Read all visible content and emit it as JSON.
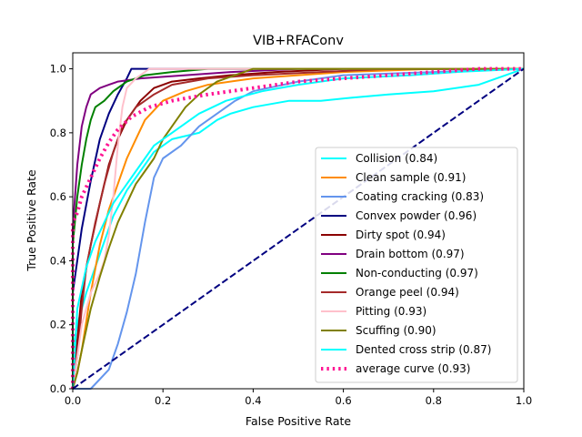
{
  "chart_data": {
    "type": "line",
    "title": "VIB+RFAConv",
    "xlabel": "False Positive Rate",
    "ylabel": "True Positive Rate",
    "xlim": [
      0.0,
      1.0
    ],
    "ylim": [
      0.0,
      1.05
    ],
    "xticks": [
      "0.0",
      "0.2",
      "0.4",
      "0.6",
      "0.8",
      "1.0"
    ],
    "yticks": [
      "0.0",
      "0.2",
      "0.4",
      "0.6",
      "0.8",
      "1.0"
    ],
    "grid": false,
    "legend_position": "lower-right",
    "series": [
      {
        "name": "Collision (0.84)",
        "color": "#00ffff",
        "dash": "solid",
        "points": [
          [
            0,
            0
          ],
          [
            0,
            0.12
          ],
          [
            0.01,
            0.2
          ],
          [
            0.03,
            0.3
          ],
          [
            0.05,
            0.38
          ],
          [
            0.07,
            0.46
          ],
          [
            0.09,
            0.54
          ],
          [
            0.12,
            0.62
          ],
          [
            0.15,
            0.68
          ],
          [
            0.18,
            0.74
          ],
          [
            0.22,
            0.78
          ],
          [
            0.28,
            0.8
          ],
          [
            0.32,
            0.84
          ],
          [
            0.35,
            0.86
          ],
          [
            0.4,
            0.88
          ],
          [
            0.48,
            0.9
          ],
          [
            0.55,
            0.9
          ],
          [
            0.62,
            0.91
          ],
          [
            0.7,
            0.92
          ],
          [
            0.8,
            0.93
          ],
          [
            0.9,
            0.95
          ],
          [
            1.0,
            1.0
          ]
        ]
      },
      {
        "name": "Clean sample (0.91)",
        "color": "#ff8c00",
        "dash": "solid",
        "points": [
          [
            0,
            0
          ],
          [
            0.01,
            0.05
          ],
          [
            0.02,
            0.12
          ],
          [
            0.04,
            0.3
          ],
          [
            0.06,
            0.45
          ],
          [
            0.08,
            0.56
          ],
          [
            0.1,
            0.64
          ],
          [
            0.12,
            0.72
          ],
          [
            0.14,
            0.78
          ],
          [
            0.16,
            0.84
          ],
          [
            0.2,
            0.9
          ],
          [
            0.25,
            0.93
          ],
          [
            0.3,
            0.95
          ],
          [
            0.4,
            0.97
          ],
          [
            0.5,
            0.98
          ],
          [
            0.6,
            0.99
          ],
          [
            0.8,
            1.0
          ],
          [
            1.0,
            1.0
          ]
        ]
      },
      {
        "name": "Coating cracking (0.83)",
        "color": "#6495ed",
        "dash": "solid",
        "points": [
          [
            0,
            0
          ],
          [
            0.04,
            0.0
          ],
          [
            0.06,
            0.03
          ],
          [
            0.08,
            0.06
          ],
          [
            0.1,
            0.14
          ],
          [
            0.12,
            0.24
          ],
          [
            0.14,
            0.36
          ],
          [
            0.16,
            0.52
          ],
          [
            0.18,
            0.66
          ],
          [
            0.2,
            0.72
          ],
          [
            0.24,
            0.76
          ],
          [
            0.28,
            0.82
          ],
          [
            0.32,
            0.86
          ],
          [
            0.36,
            0.9
          ],
          [
            0.4,
            0.93
          ],
          [
            0.5,
            0.96
          ],
          [
            0.6,
            0.98
          ],
          [
            0.8,
            0.99
          ],
          [
            1.0,
            1.0
          ]
        ]
      },
      {
        "name": "Convex powder (0.96)",
        "color": "#000080",
        "dash": "solid",
        "points": [
          [
            0,
            0
          ],
          [
            0,
            0.3
          ],
          [
            0.02,
            0.5
          ],
          [
            0.04,
            0.65
          ],
          [
            0.06,
            0.78
          ],
          [
            0.08,
            0.86
          ],
          [
            0.1,
            0.92
          ],
          [
            0.12,
            0.97
          ],
          [
            0.13,
            1.0
          ],
          [
            0.16,
            1.0
          ],
          [
            1.0,
            1.0
          ]
        ]
      },
      {
        "name": "Dirty spot (0.94)",
        "color": "#8b0000",
        "dash": "solid",
        "points": [
          [
            0,
            0
          ],
          [
            0.01,
            0.15
          ],
          [
            0.02,
            0.3
          ],
          [
            0.04,
            0.45
          ],
          [
            0.06,
            0.58
          ],
          [
            0.08,
            0.7
          ],
          [
            0.1,
            0.78
          ],
          [
            0.12,
            0.84
          ],
          [
            0.15,
            0.9
          ],
          [
            0.18,
            0.94
          ],
          [
            0.22,
            0.96
          ],
          [
            0.28,
            0.97
          ],
          [
            0.35,
            0.98
          ],
          [
            0.45,
            0.99
          ],
          [
            0.6,
            1.0
          ],
          [
            1.0,
            1.0
          ]
        ]
      },
      {
        "name": "Drain bottom (0.97)",
        "color": "#800080",
        "dash": "solid",
        "points": [
          [
            0,
            0
          ],
          [
            0,
            0.5
          ],
          [
            0.01,
            0.7
          ],
          [
            0.02,
            0.82
          ],
          [
            0.03,
            0.88
          ],
          [
            0.04,
            0.92
          ],
          [
            0.06,
            0.94
          ],
          [
            0.08,
            0.95
          ],
          [
            0.1,
            0.96
          ],
          [
            0.15,
            0.97
          ],
          [
            0.25,
            0.98
          ],
          [
            0.35,
            0.99
          ],
          [
            0.5,
            1.0
          ],
          [
            1.0,
            1.0
          ]
        ]
      },
      {
        "name": "Non-conducting (0.97)",
        "color": "#008000",
        "dash": "solid",
        "points": [
          [
            0,
            0
          ],
          [
            0,
            0.45
          ],
          [
            0.01,
            0.6
          ],
          [
            0.02,
            0.7
          ],
          [
            0.03,
            0.78
          ],
          [
            0.04,
            0.84
          ],
          [
            0.05,
            0.88
          ],
          [
            0.07,
            0.9
          ],
          [
            0.09,
            0.93
          ],
          [
            0.12,
            0.96
          ],
          [
            0.16,
            0.98
          ],
          [
            0.22,
            0.99
          ],
          [
            0.3,
            1.0
          ],
          [
            1.0,
            1.0
          ]
        ]
      },
      {
        "name": "Orange peel (0.94)",
        "color": "#a52a2a",
        "dash": "solid",
        "points": [
          [
            0,
            0
          ],
          [
            0.01,
            0.1
          ],
          [
            0.02,
            0.25
          ],
          [
            0.03,
            0.38
          ],
          [
            0.05,
            0.52
          ],
          [
            0.07,
            0.64
          ],
          [
            0.09,
            0.74
          ],
          [
            0.11,
            0.82
          ],
          [
            0.14,
            0.88
          ],
          [
            0.18,
            0.92
          ],
          [
            0.22,
            0.95
          ],
          [
            0.3,
            0.97
          ],
          [
            0.4,
            0.98
          ],
          [
            0.55,
            0.99
          ],
          [
            0.7,
            1.0
          ],
          [
            1.0,
            1.0
          ]
        ]
      },
      {
        "name": "Pitting (0.93)",
        "color": "#ffc0cb",
        "dash": "solid",
        "points": [
          [
            0,
            0
          ],
          [
            0.02,
            0.2
          ],
          [
            0.04,
            0.3
          ],
          [
            0.06,
            0.36
          ],
          [
            0.07,
            0.4
          ],
          [
            0.08,
            0.48
          ],
          [
            0.09,
            0.6
          ],
          [
            0.1,
            0.76
          ],
          [
            0.11,
            0.88
          ],
          [
            0.12,
            0.94
          ],
          [
            0.14,
            0.97
          ],
          [
            0.17,
            1.0
          ],
          [
            1.0,
            1.0
          ]
        ]
      },
      {
        "name": "Scuffing (0.90)",
        "color": "#808000",
        "dash": "solid",
        "points": [
          [
            0,
            0
          ],
          [
            0.01,
            0.05
          ],
          [
            0.02,
            0.12
          ],
          [
            0.04,
            0.25
          ],
          [
            0.06,
            0.35
          ],
          [
            0.08,
            0.44
          ],
          [
            0.1,
            0.52
          ],
          [
            0.12,
            0.58
          ],
          [
            0.14,
            0.64
          ],
          [
            0.16,
            0.68
          ],
          [
            0.18,
            0.72
          ],
          [
            0.2,
            0.78
          ],
          [
            0.22,
            0.82
          ],
          [
            0.25,
            0.88
          ],
          [
            0.28,
            0.92
          ],
          [
            0.32,
            0.96
          ],
          [
            0.36,
            0.98
          ],
          [
            0.4,
            1.0
          ],
          [
            1.0,
            1.0
          ]
        ]
      },
      {
        "name": "Dented cross strip (0.87)",
        "color": "#00ffff",
        "dash": "solid",
        "points": [
          [
            0,
            0
          ],
          [
            0.01,
            0.25
          ],
          [
            0.03,
            0.38
          ],
          [
            0.05,
            0.46
          ],
          [
            0.07,
            0.52
          ],
          [
            0.09,
            0.58
          ],
          [
            0.12,
            0.64
          ],
          [
            0.15,
            0.7
          ],
          [
            0.18,
            0.76
          ],
          [
            0.22,
            0.8
          ],
          [
            0.28,
            0.86
          ],
          [
            0.34,
            0.9
          ],
          [
            0.42,
            0.93
          ],
          [
            0.5,
            0.95
          ],
          [
            0.6,
            0.97
          ],
          [
            0.75,
            0.98
          ],
          [
            0.85,
            0.99
          ],
          [
            1.0,
            1.0
          ]
        ]
      },
      {
        "name": "average curve (0.93)",
        "color": "#ff1493",
        "dash": "dotted",
        "points": [
          [
            0,
            0
          ],
          [
            0,
            0.52
          ],
          [
            0.01,
            0.55
          ],
          [
            0.02,
            0.6
          ],
          [
            0.04,
            0.66
          ],
          [
            0.06,
            0.72
          ],
          [
            0.08,
            0.77
          ],
          [
            0.1,
            0.81
          ],
          [
            0.13,
            0.85
          ],
          [
            0.17,
            0.88
          ],
          [
            0.22,
            0.9
          ],
          [
            0.3,
            0.92
          ],
          [
            0.4,
            0.94
          ],
          [
            0.5,
            0.96
          ],
          [
            0.6,
            0.97
          ],
          [
            0.7,
            0.98
          ],
          [
            0.8,
            0.99
          ],
          [
            0.9,
            1.0
          ],
          [
            1.0,
            1.0
          ]
        ]
      },
      {
        "name": "",
        "color": "#000080",
        "dash": "dashed",
        "points": [
          [
            0,
            0
          ],
          [
            1,
            1
          ]
        ]
      }
    ]
  }
}
